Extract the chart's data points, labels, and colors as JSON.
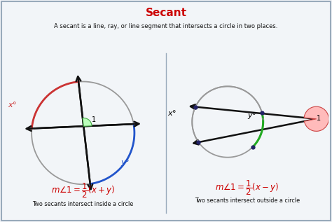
{
  "title": "Secant",
  "title_color": "#cc0000",
  "subtitle": "A secant is a line, ray, or line segment that intersects a circle in two places.",
  "subtitle_color": "#111111",
  "bg_color": "#f2f5f8",
  "border_color": "#99aabb",
  "left_caption": "Two secants intersect inside a circle",
  "right_caption": "Two secants intersect outside a circle",
  "formula_color": "#cc0000",
  "caption_color": "#111111",
  "circle_gray": "#999999",
  "arc_red": "#cc3333",
  "arc_blue": "#2255cc",
  "arc_green": "#22aa22",
  "line_color": "#111111",
  "dot_color": "#222266",
  "angle_green_fill": "#bbffbb",
  "angle_green_edge": "#44aa44",
  "angle_red_fill": "#ffbbbb",
  "angle_red_edge": "#cc4444"
}
